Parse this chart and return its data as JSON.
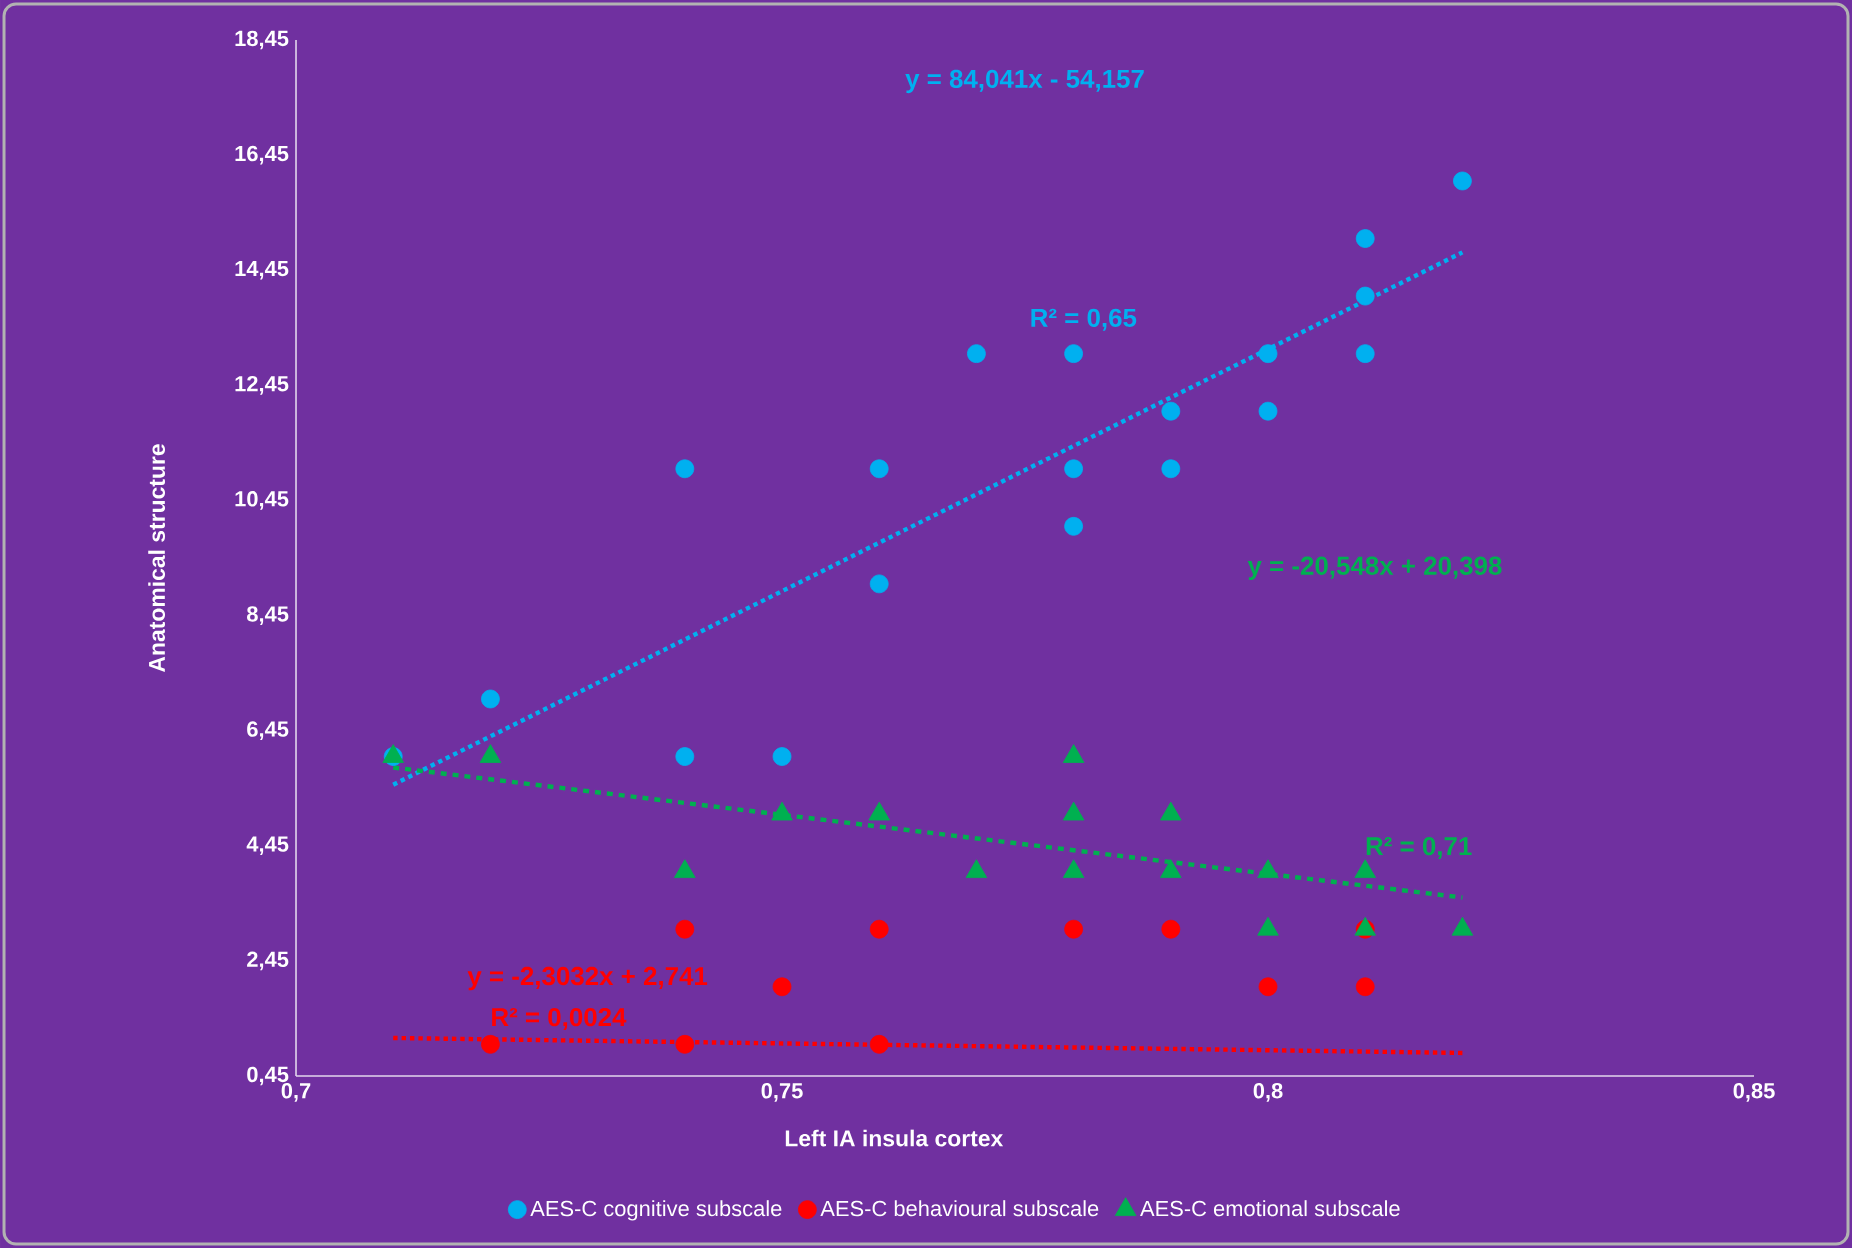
{
  "chart_data": {
    "type": "scatter",
    "xlabel": "Left IA insula cortex",
    "ylabel": "Anatomical structure",
    "xlim": [
      0.7,
      0.85
    ],
    "xticks": [
      {
        "value": 0.7,
        "label": "0,7"
      },
      {
        "value": 0.75,
        "label": "0,75"
      },
      {
        "value": 0.8,
        "label": "0,8"
      },
      {
        "value": 0.85,
        "label": "0,85"
      }
    ],
    "ylim": [
      0.45,
      18.45
    ],
    "yticks": [
      {
        "value": 0.45,
        "label": "0,45"
      },
      {
        "value": 2.45,
        "label": "2,45"
      },
      {
        "value": 4.45,
        "label": "4,45"
      },
      {
        "value": 6.45,
        "label": "6,45"
      },
      {
        "value": 8.45,
        "label": "8,45"
      },
      {
        "value": 10.45,
        "label": "10,45"
      },
      {
        "value": 12.45,
        "label": "12,45"
      },
      {
        "value": 14.45,
        "label": "14,45"
      },
      {
        "value": 16.45,
        "label": "16,45"
      },
      {
        "value": 18.45,
        "label": "18,45"
      }
    ],
    "legend": "bottom",
    "series": [
      {
        "name": "AES-C cognitive subscale",
        "marker": "circle",
        "color": "#00b0f0",
        "x": [
          0.71,
          0.72,
          0.74,
          0.74,
          0.75,
          0.76,
          0.76,
          0.77,
          0.78,
          0.78,
          0.78,
          0.79,
          0.79,
          0.8,
          0.8,
          0.81,
          0.81,
          0.81,
          0.82
        ],
        "values": [
          6,
          7,
          11,
          6,
          6,
          11,
          9,
          13,
          13,
          11,
          10,
          12,
          11,
          13,
          12,
          15,
          14,
          13,
          16
        ]
      },
      {
        "name": "AES-C behavioural subscale",
        "marker": "circle",
        "color": "#ff0000",
        "x": [
          0.72,
          0.74,
          0.74,
          0.75,
          0.76,
          0.76,
          0.78,
          0.79,
          0.8,
          0.81,
          0.81
        ],
        "values": [
          1,
          3,
          1,
          2,
          3,
          1,
          3,
          3,
          2,
          2,
          3
        ]
      },
      {
        "name": "AES-C emotional subscale",
        "marker": "triangle",
        "color": "#00b050",
        "x": [
          0.71,
          0.72,
          0.74,
          0.75,
          0.76,
          0.77,
          0.78,
          0.78,
          0.78,
          0.79,
          0.79,
          0.8,
          0.8,
          0.81,
          0.81,
          0.82
        ],
        "values": [
          6,
          6,
          4,
          5,
          5,
          4,
          6,
          5,
          4,
          5,
          4,
          4,
          3,
          4,
          3,
          3
        ]
      },
      {
        "type": "line",
        "line_style": "dotted",
        "color": "#00b0f0",
        "x": [
          0.71,
          0.82
        ],
        "values": [
          5.51,
          14.76
        ]
      },
      {
        "type": "line",
        "line_style": "dotted",
        "color": "#ff0000",
        "x": [
          0.71,
          0.82
        ],
        "values": [
          1.11,
          0.85
        ]
      },
      {
        "type": "line",
        "line_style": "dashed",
        "color": "#00b050",
        "x": [
          0.71,
          0.82
        ],
        "values": [
          5.81,
          3.55
        ]
      }
    ],
    "annotations": [
      "y = 84,041x - 54,157",
      "R² = 0,65",
      "y = -2,3032x + 2,741",
      "R² = 0,0024",
      "y = -20,548x + 20,398",
      "R² = 0,71"
    ]
  }
}
